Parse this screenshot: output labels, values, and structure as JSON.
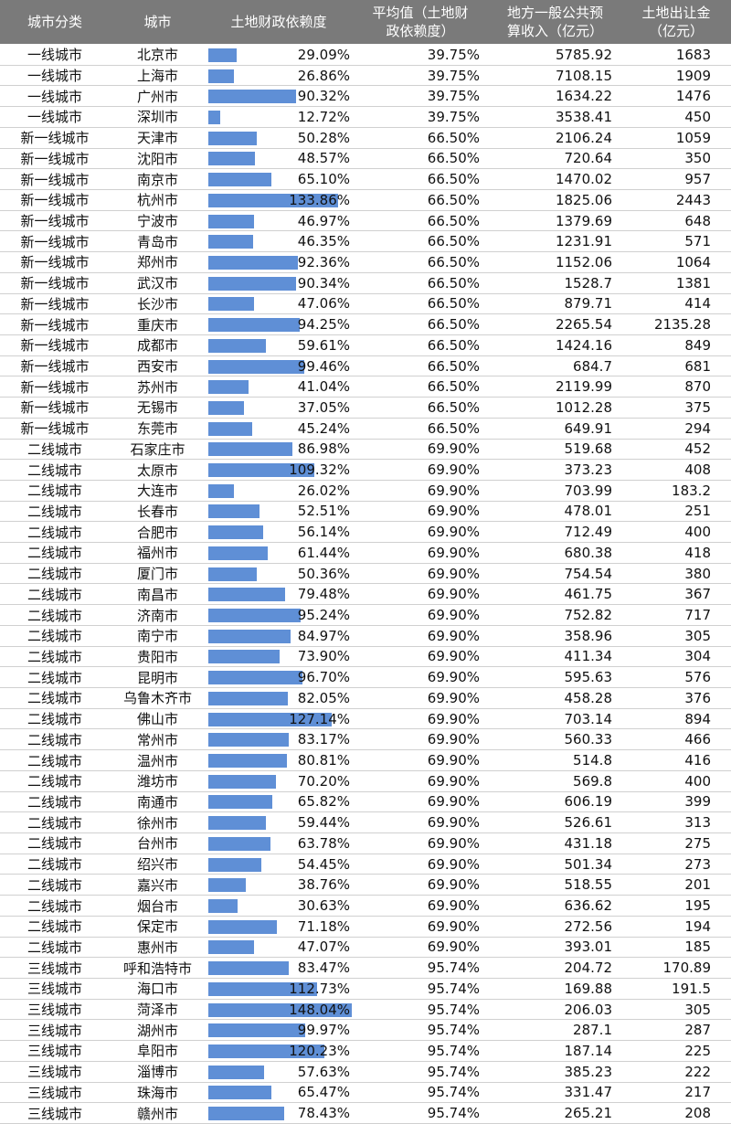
{
  "table": {
    "headers": [
      [
        "城市分类"
      ],
      [
        "城市"
      ],
      [
        "土地财政依赖度"
      ],
      [
        "平均值（土地财",
        "政依赖度）"
      ],
      [
        "地方一般公共预",
        "算收入（亿元）"
      ],
      [
        "土地出让金",
        "（亿元）"
      ]
    ],
    "rows": [
      [
        "一线城市",
        "北京市",
        "29.09%",
        "39.75%",
        "5785.92",
        "1683"
      ],
      [
        "一线城市",
        "上海市",
        "26.86%",
        "39.75%",
        "7108.15",
        "1909"
      ],
      [
        "一线城市",
        "广州市",
        "90.32%",
        "39.75%",
        "1634.22",
        "1476"
      ],
      [
        "一线城市",
        "深圳市",
        "12.72%",
        "39.75%",
        "3538.41",
        "450"
      ],
      [
        "新一线城市",
        "天津市",
        "50.28%",
        "66.50%",
        "2106.24",
        "1059"
      ],
      [
        "新一线城市",
        "沈阳市",
        "48.57%",
        "66.50%",
        "720.64",
        "350"
      ],
      [
        "新一线城市",
        "南京市",
        "65.10%",
        "66.50%",
        "1470.02",
        "957"
      ],
      [
        "新一线城市",
        "杭州市",
        "133.86%",
        "66.50%",
        "1825.06",
        "2443"
      ],
      [
        "新一线城市",
        "宁波市",
        "46.97%",
        "66.50%",
        "1379.69",
        "648"
      ],
      [
        "新一线城市",
        "青岛市",
        "46.35%",
        "66.50%",
        "1231.91",
        "571"
      ],
      [
        "新一线城市",
        "郑州市",
        "92.36%",
        "66.50%",
        "1152.06",
        "1064"
      ],
      [
        "新一线城市",
        "武汉市",
        "90.34%",
        "66.50%",
        "1528.7",
        "1381"
      ],
      [
        "新一线城市",
        "长沙市",
        "47.06%",
        "66.50%",
        "879.71",
        "414"
      ],
      [
        "新一线城市",
        "重庆市",
        "94.25%",
        "66.50%",
        "2265.54",
        "2135.28"
      ],
      [
        "新一线城市",
        "成都市",
        "59.61%",
        "66.50%",
        "1424.16",
        "849"
      ],
      [
        "新一线城市",
        "西安市",
        "99.46%",
        "66.50%",
        "684.7",
        "681"
      ],
      [
        "新一线城市",
        "苏州市",
        "41.04%",
        "66.50%",
        "2119.99",
        "870"
      ],
      [
        "新一线城市",
        "无锡市",
        "37.05%",
        "66.50%",
        "1012.28",
        "375"
      ],
      [
        "新一线城市",
        "东莞市",
        "45.24%",
        "66.50%",
        "649.91",
        "294"
      ],
      [
        "二线城市",
        "石家庄市",
        "86.98%",
        "69.90%",
        "519.68",
        "452"
      ],
      [
        "二线城市",
        "太原市",
        "109.32%",
        "69.90%",
        "373.23",
        "408"
      ],
      [
        "二线城市",
        "大连市",
        "26.02%",
        "69.90%",
        "703.99",
        "183.2"
      ],
      [
        "二线城市",
        "长春市",
        "52.51%",
        "69.90%",
        "478.01",
        "251"
      ],
      [
        "二线城市",
        "合肥市",
        "56.14%",
        "69.90%",
        "712.49",
        "400"
      ],
      [
        "二线城市",
        "福州市",
        "61.44%",
        "69.90%",
        "680.38",
        "418"
      ],
      [
        "二线城市",
        "厦门市",
        "50.36%",
        "69.90%",
        "754.54",
        "380"
      ],
      [
        "二线城市",
        "南昌市",
        "79.48%",
        "69.90%",
        "461.75",
        "367"
      ],
      [
        "二线城市",
        "济南市",
        "95.24%",
        "69.90%",
        "752.82",
        "717"
      ],
      [
        "二线城市",
        "南宁市",
        "84.97%",
        "69.90%",
        "358.96",
        "305"
      ],
      [
        "二线城市",
        "贵阳市",
        "73.90%",
        "69.90%",
        "411.34",
        "304"
      ],
      [
        "二线城市",
        "昆明市",
        "96.70%",
        "69.90%",
        "595.63",
        "576"
      ],
      [
        "二线城市",
        "乌鲁木齐市",
        "82.05%",
        "69.90%",
        "458.28",
        "376"
      ],
      [
        "二线城市",
        "佛山市",
        "127.14%",
        "69.90%",
        "703.14",
        "894"
      ],
      [
        "二线城市",
        "常州市",
        "83.17%",
        "69.90%",
        "560.33",
        "466"
      ],
      [
        "二线城市",
        "温州市",
        "80.81%",
        "69.90%",
        "514.8",
        "416"
      ],
      [
        "二线城市",
        "潍坊市",
        "70.20%",
        "69.90%",
        "569.8",
        "400"
      ],
      [
        "二线城市",
        "南通市",
        "65.82%",
        "69.90%",
        "606.19",
        "399"
      ],
      [
        "二线城市",
        "徐州市",
        "59.44%",
        "69.90%",
        "526.61",
        "313"
      ],
      [
        "二线城市",
        "台州市",
        "63.78%",
        "69.90%",
        "431.18",
        "275"
      ],
      [
        "二线城市",
        "绍兴市",
        "54.45%",
        "69.90%",
        "501.34",
        "273"
      ],
      [
        "二线城市",
        "嘉兴市",
        "38.76%",
        "69.90%",
        "518.55",
        "201"
      ],
      [
        "二线城市",
        "烟台市",
        "30.63%",
        "69.90%",
        "636.62",
        "195"
      ],
      [
        "二线城市",
        "保定市",
        "71.18%",
        "69.90%",
        "272.56",
        "194"
      ],
      [
        "二线城市",
        "惠州市",
        "47.07%",
        "69.90%",
        "393.01",
        "185"
      ],
      [
        "三线城市",
        "呼和浩特市",
        "83.47%",
        "95.74%",
        "204.72",
        "170.89"
      ],
      [
        "三线城市",
        "海口市",
        "112.73%",
        "95.74%",
        "169.88",
        "191.5"
      ],
      [
        "三线城市",
        "菏泽市",
        "148.04%",
        "95.74%",
        "206.03",
        "305"
      ],
      [
        "三线城市",
        "湖州市",
        "99.97%",
        "95.74%",
        "287.1",
        "287"
      ],
      [
        "三线城市",
        "阜阳市",
        "120.23%",
        "95.74%",
        "187.14",
        "225"
      ],
      [
        "三线城市",
        "淄博市",
        "57.63%",
        "95.74%",
        "385.23",
        "222"
      ],
      [
        "三线城市",
        "珠海市",
        "65.47%",
        "95.74%",
        "331.47",
        "217"
      ],
      [
        "三线城市",
        "赣州市",
        "78.43%",
        "95.74%",
        "265.21",
        "208"
      ]
    ]
  }
}
